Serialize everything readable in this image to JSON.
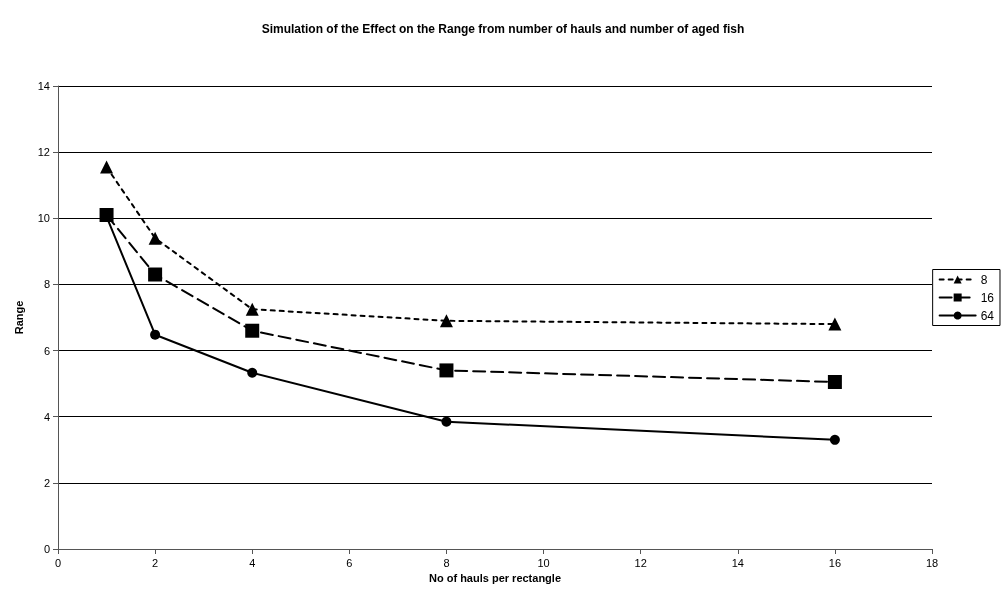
{
  "chart_data": {
    "type": "line",
    "title": "Simulation of the Effect on the Range from number of hauls and number of aged fish",
    "xlabel": "No of hauls per rectangle",
    "ylabel": "Range",
    "x": [
      1,
      2,
      4,
      8,
      16
    ],
    "series": [
      {
        "name": "8",
        "color": "#000000",
        "marker": "triangle",
        "line_style": "dotted",
        "values": [
          11.55,
          9.4,
          7.25,
          6.9,
          6.8
        ]
      },
      {
        "name": "16",
        "color": "#000000",
        "marker": "square",
        "line_style": "dashed",
        "values": [
          10.1,
          8.3,
          6.6,
          5.4,
          5.05
        ]
      },
      {
        "name": "64",
        "color": "#000000",
        "marker": "circle",
        "line_style": "solid",
        "values": [
          10.05,
          6.48,
          5.33,
          3.85,
          3.3
        ]
      }
    ],
    "xlim": [
      0,
      18
    ],
    "xticks": [
      0,
      2,
      4,
      6,
      8,
      10,
      12,
      14,
      16,
      18
    ],
    "ylim": [
      0,
      14
    ],
    "yticks": [
      0,
      2,
      4,
      6,
      8,
      10,
      12,
      14
    ],
    "grid": "y",
    "legend": "right"
  }
}
